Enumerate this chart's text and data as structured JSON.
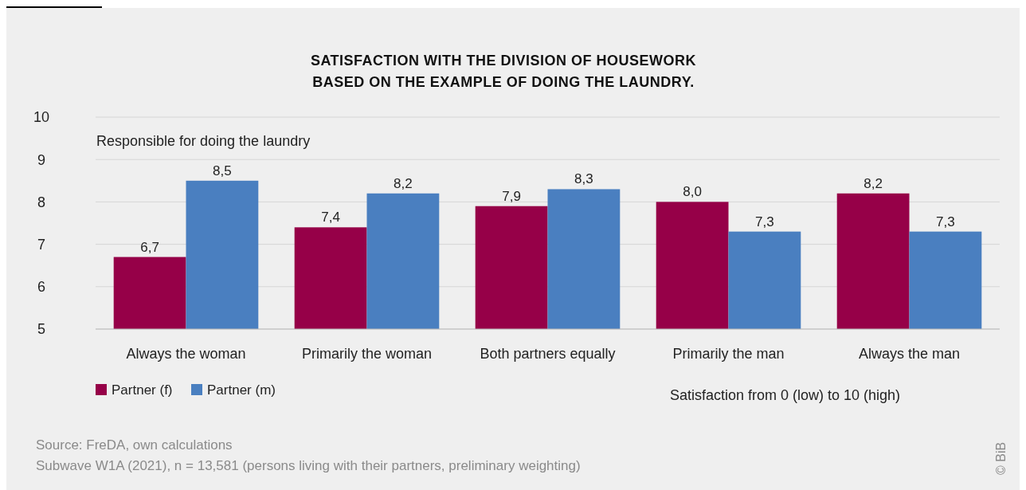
{
  "chart_data": {
    "type": "bar",
    "title": "SATISFACTION WITH THE DIVISION OF HOUSEWORK\nBASED ON THE EXAMPLE OF DOING THE LAUNDRY.",
    "categories": [
      "Always the woman",
      "Primarily the woman",
      "Both partners equally",
      "Primarily the man",
      "Always the man"
    ],
    "series": [
      {
        "name": "Partner (f)",
        "color": "#960048",
        "values": [
          6.7,
          7.4,
          7.9,
          8.0,
          8.2
        ],
        "value_labels": [
          "6,7",
          "7,4",
          "7,9",
          "8,0",
          "8,2"
        ]
      },
      {
        "name": "Partner (m)",
        "color": "#4a7fc0",
        "values": [
          8.5,
          8.2,
          8.3,
          7.3,
          7.3
        ],
        "value_labels": [
          "8,5",
          "8,2",
          "8,3",
          "7,3",
          "7,3"
        ]
      }
    ],
    "ylim": [
      5,
      10
    ],
    "yticks": [
      5,
      6,
      7,
      8,
      9,
      10
    ],
    "grid": "y",
    "legend": "bottom left",
    "annotations": [
      "Responsible for doing the laundry",
      "Satisfaction from 0 (low) to 10 (high)",
      "Source: FreDA, own calculations",
      "Subwave W1A (2021), n = 13,581 (persons living with their partners, preliminary weighting)",
      "© BiB"
    ]
  }
}
